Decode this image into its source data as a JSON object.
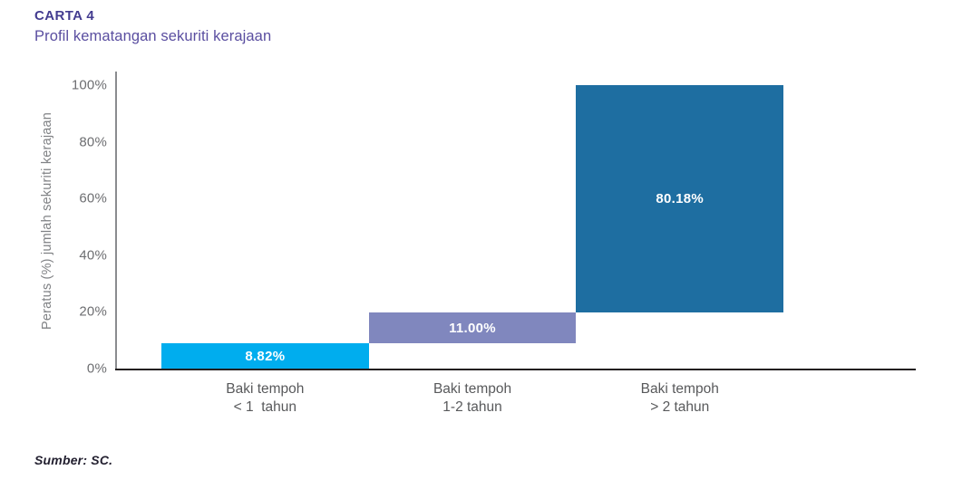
{
  "header": {
    "label": "CARTA 4",
    "title": "Profil kematangan sekuriti kerajaan"
  },
  "footer": {
    "source": "Sumber: SC."
  },
  "chart_data": {
    "type": "bar",
    "variant": "waterfall-stacked",
    "title": "Profil kematangan sekuriti kerajaan",
    "xlabel": "",
    "ylabel": "Peratus (%) jumlah sekuriti kerajaan",
    "ylim": [
      0,
      100
    ],
    "grid": false,
    "legend": false,
    "categories": [
      [
        "Baki tempoh",
        "< 1  tahun"
      ],
      [
        "Baki tempoh",
        "1-2 tahun"
      ],
      [
        "Baki tempoh",
        "> 2 tahun"
      ]
    ],
    "values": [
      8.82,
      11.0,
      80.18
    ],
    "value_labels": [
      "8.82%",
      "11.00%",
      "80.18%"
    ],
    "cumulative_start": [
      0,
      8.82,
      19.82
    ],
    "bar_colors": [
      "#00ADEE",
      "#8087BE",
      "#1E6EA1"
    ],
    "ytick_values": [
      0,
      20,
      40,
      60,
      80,
      100
    ],
    "yticks": [
      "0%",
      "20%",
      "40%",
      "60%",
      "80%",
      "100%"
    ]
  }
}
